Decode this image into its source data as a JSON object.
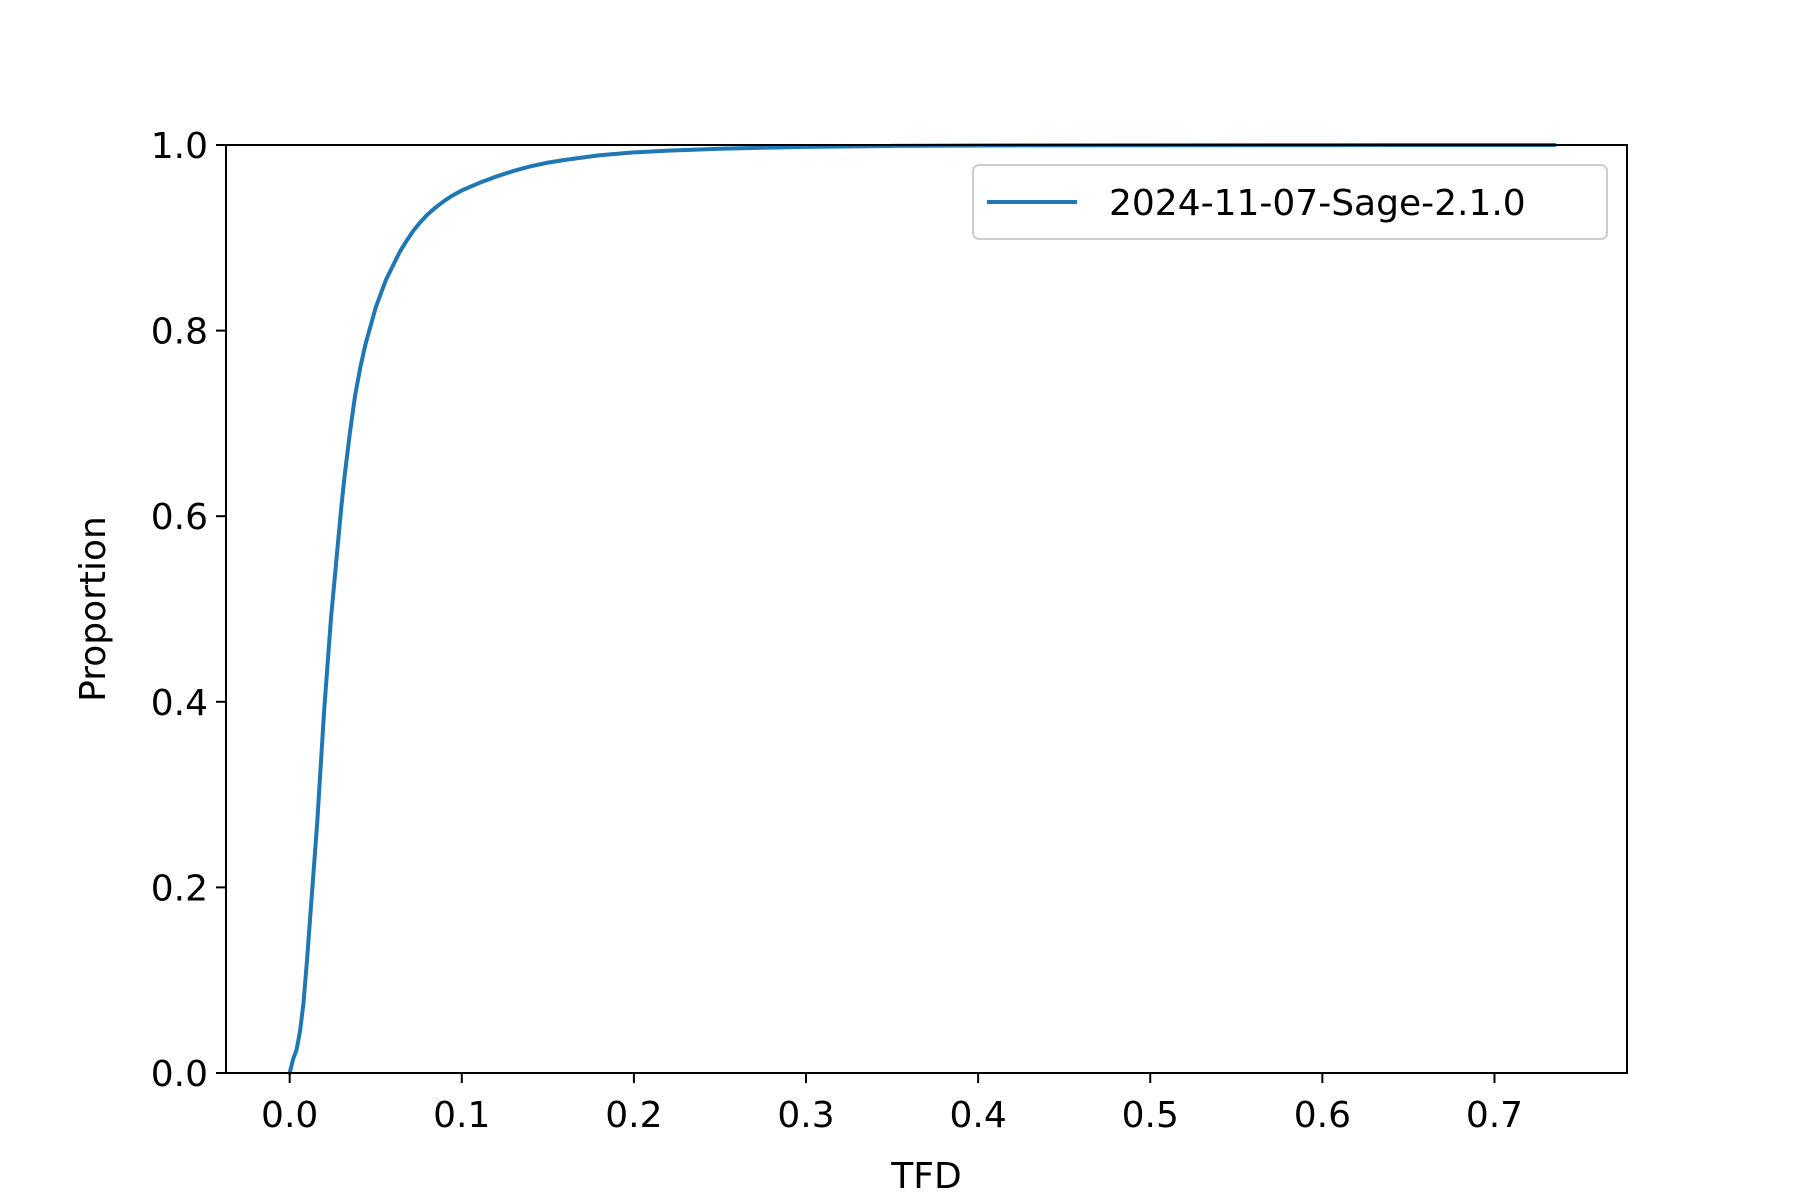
{
  "chart_data": {
    "type": "line",
    "title": "",
    "xlabel": "TFD",
    "ylabel": "Proportion",
    "xlim": [
      -0.037,
      0.777
    ],
    "ylim": [
      0.0,
      1.0
    ],
    "x_ticks": [
      0.0,
      0.1,
      0.2,
      0.3,
      0.4,
      0.5,
      0.6,
      0.7
    ],
    "x_tick_labels": [
      "0.0",
      "0.1",
      "0.2",
      "0.3",
      "0.4",
      "0.5",
      "0.6",
      "0.7"
    ],
    "y_ticks": [
      0.0,
      0.2,
      0.4,
      0.6,
      0.8,
      1.0
    ],
    "y_tick_labels": [
      "0.0",
      "0.2",
      "0.4",
      "0.6",
      "0.8",
      "1.0"
    ],
    "grid": false,
    "legend_position": "upper-right",
    "series": [
      {
        "name": "2024-11-07-Sage-2.1.0",
        "color": "#1f77b4",
        "x": [
          0.0,
          0.002,
          0.004,
          0.006,
          0.008,
          0.01,
          0.012,
          0.014,
          0.016,
          0.018,
          0.02,
          0.022,
          0.024,
          0.026,
          0.028,
          0.03,
          0.032,
          0.035,
          0.038,
          0.041,
          0.044,
          0.047,
          0.05,
          0.053,
          0.056,
          0.06,
          0.064,
          0.068,
          0.072,
          0.076,
          0.08,
          0.085,
          0.09,
          0.095,
          0.1,
          0.105,
          0.11,
          0.12,
          0.13,
          0.14,
          0.15,
          0.16,
          0.18,
          0.2,
          0.22,
          0.25,
          0.3,
          0.35,
          0.4,
          0.5,
          0.6,
          0.7,
          0.735
        ],
        "y": [
          0.0,
          0.015,
          0.025,
          0.045,
          0.075,
          0.12,
          0.17,
          0.22,
          0.27,
          0.33,
          0.39,
          0.44,
          0.49,
          0.53,
          0.57,
          0.61,
          0.645,
          0.69,
          0.73,
          0.76,
          0.785,
          0.805,
          0.825,
          0.84,
          0.855,
          0.87,
          0.885,
          0.897,
          0.908,
          0.917,
          0.925,
          0.933,
          0.94,
          0.946,
          0.951,
          0.955,
          0.959,
          0.966,
          0.972,
          0.977,
          0.981,
          0.984,
          0.989,
          0.992,
          0.994,
          0.996,
          0.998,
          0.999,
          0.9995,
          0.9998,
          0.9999,
          1.0,
          1.0
        ]
      }
    ]
  }
}
